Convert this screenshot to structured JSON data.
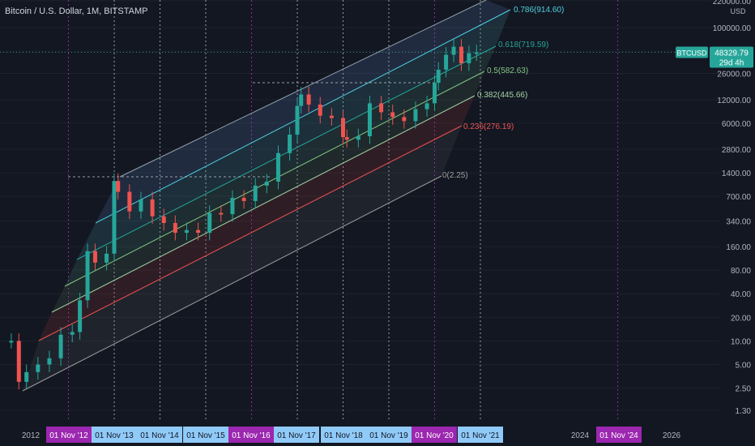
{
  "header": {
    "symbol_title": "Bitcoin / U.S. Dollar, 1M, BITSTAMP"
  },
  "colors": {
    "background": "#131722",
    "up": "#26a69a",
    "down": "#ef5350",
    "axis_text": "#b2b5be",
    "price_tag": "#26a69a",
    "purple": "#9c27b0",
    "light_blue": "#90caf9"
  },
  "price_axis": {
    "unit": "USD",
    "ticks": [
      "220000.00",
      "100000.00",
      "50000.00",
      "26000.00",
      "12000.00",
      "6000.00",
      "2800.00",
      "1400.00",
      "700.00",
      "340.00",
      "160.00",
      "80.00",
      "40.00",
      "20.00",
      "10.00",
      "5.00",
      "2.50",
      "1.30"
    ]
  },
  "price_tag": {
    "symbol": "BTCUSD",
    "price": "48329.79",
    "countdown": "29d 4h"
  },
  "time_axis": {
    "labels": [
      {
        "text": "2012",
        "style": "plain"
      },
      {
        "text": "01 Nov '12",
        "style": "purple"
      },
      {
        "text": "01 Nov '13",
        "style": "blue"
      },
      {
        "text": "01 Nov '14",
        "style": "blue"
      },
      {
        "text": "01 Nov '15",
        "style": "blue"
      },
      {
        "text": "01 Nov '16",
        "style": "purple"
      },
      {
        "text": "01 Nov '17",
        "style": "blue"
      },
      {
        "text": "01 Nov '18",
        "style": "blue"
      },
      {
        "text": "01 Nov '19",
        "style": "blue"
      },
      {
        "text": "01 Nov '20",
        "style": "purple"
      },
      {
        "text": "01 Nov '21",
        "style": "blue"
      },
      {
        "text": "2024",
        "style": "plain"
      },
      {
        "text": "01 Nov '24",
        "style": "purple"
      },
      {
        "text": "2026",
        "style": "plain"
      }
    ]
  },
  "fib_channel": {
    "levels": [
      {
        "label": "0.786(914.60)",
        "color": "#4dd0e1"
      },
      {
        "label": "0.618(719.59)",
        "color": "#26a69a"
      },
      {
        "label": "0.5(582.63)",
        "color": "#81c784"
      },
      {
        "label": "0.382(445.66)",
        "color": "#a5d6a7"
      },
      {
        "label": "0.236(276.19)",
        "color": "#ef5350"
      },
      {
        "label": "0(2.25)",
        "color": "#9e9e9e"
      }
    ]
  },
  "chart_data": {
    "type": "candlestick",
    "title": "Bitcoin / U.S. Dollar, 1M, BITSTAMP",
    "y_scale": "log",
    "ylim": [
      1.0,
      220000
    ],
    "x_range": [
      "2011-07",
      "2026-06"
    ],
    "series": [
      {
        "name": "BTCUSD",
        "x": [
          "2011-08",
          "2011-10",
          "2011-12",
          "2012-03",
          "2012-06",
          "2012-09",
          "2012-12",
          "2013-02",
          "2013-04",
          "2013-06",
          "2013-09",
          "2013-11",
          "2013-12",
          "2014-03",
          "2014-06",
          "2014-09",
          "2014-12",
          "2015-03",
          "2015-06",
          "2015-09",
          "2015-12",
          "2016-03",
          "2016-06",
          "2016-09",
          "2016-12",
          "2017-03",
          "2017-06",
          "2017-09",
          "2017-11",
          "2017-12",
          "2018-02",
          "2018-05",
          "2018-08",
          "2018-11",
          "2018-12",
          "2019-03",
          "2019-06",
          "2019-09",
          "2019-12",
          "2020-03",
          "2020-06",
          "2020-09",
          "2020-11",
          "2020-12",
          "2021-02",
          "2021-04",
          "2021-06",
          "2021-08",
          "2021-10"
        ],
        "values": [
          10,
          3,
          4,
          5,
          6,
          12,
          13,
          33,
          140,
          100,
          130,
          1100,
          800,
          450,
          640,
          390,
          320,
          240,
          260,
          240,
          430,
          415,
          670,
          610,
          960,
          1080,
          2500,
          4300,
          10000,
          14000,
          10400,
          7500,
          7000,
          4000,
          3700,
          4100,
          10800,
          8300,
          7200,
          6400,
          9100,
          10800,
          19700,
          29000,
          45000,
          57000,
          35000,
          47000,
          48329.79
        ]
      }
    ],
    "last_price": 48329.79
  }
}
